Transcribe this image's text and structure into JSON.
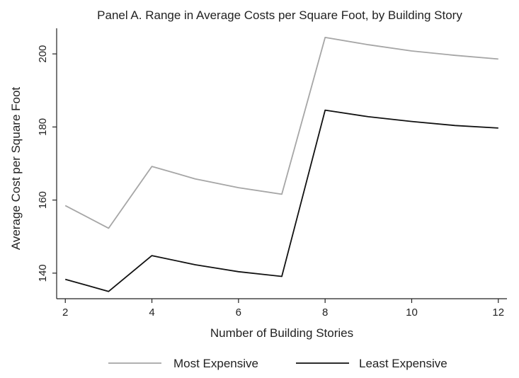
{
  "chart_data": {
    "type": "line",
    "title": "Panel A. Range in Average Costs per Square Foot, by Building Story",
    "xlabel": "Number of Building Stories",
    "ylabel": "Average Cost per Square Foot",
    "x": [
      2,
      3,
      4,
      5,
      6,
      7,
      8,
      9,
      10,
      11,
      12
    ],
    "xlim": [
      1.8,
      12.2
    ],
    "ylim": [
      133,
      207
    ],
    "xticks": [
      2,
      4,
      6,
      8,
      10,
      12
    ],
    "yticks": [
      140,
      160,
      180,
      200
    ],
    "grid": false,
    "legend_position": "bottom",
    "series": [
      {
        "name": "Most Expensive",
        "color": "#a6a6a6",
        "values": [
          158.5,
          152.3,
          169.2,
          165.8,
          163.4,
          161.6,
          204.5,
          202.5,
          200.8,
          199.6,
          198.6
        ]
      },
      {
        "name": "Least Expensive",
        "color": "#111111",
        "values": [
          138.3,
          135.0,
          144.8,
          142.3,
          140.4,
          139.1,
          184.6,
          182.8,
          181.5,
          180.4,
          179.7
        ]
      }
    ]
  }
}
